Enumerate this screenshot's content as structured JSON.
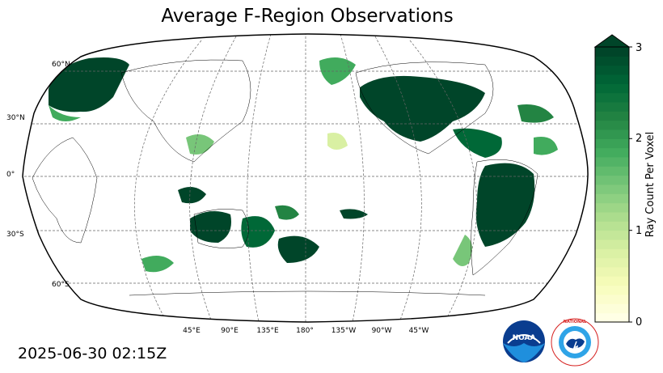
{
  "title": "Average F-Region Observations",
  "timestamp": "2025-06-30 02:15Z",
  "colorbar": {
    "label": "Ray Count Per Voxel",
    "ticks": [
      "0",
      "1",
      "2",
      "3"
    ],
    "min": 0,
    "max": 3,
    "extend": "max",
    "colormap": "YlGn",
    "colors": [
      "#ffffe5",
      "#f7fcb9",
      "#d9f0a3",
      "#addd8e",
      "#78c679",
      "#41ab5d",
      "#238443",
      "#006837",
      "#004529"
    ]
  },
  "map": {
    "projection": "Robinson",
    "central_longitude": 180,
    "lat_labels": [
      "60°N",
      "30°N",
      "0°",
      "30°S",
      "60°S"
    ],
    "lon_labels": [
      "45°E",
      "90°E",
      "135°E",
      "180°",
      "135°W",
      "90°W",
      "45°W"
    ],
    "land_color": "#ffffff",
    "coastline_color": "#000000",
    "gridline_style": "dashed"
  },
  "logos": {
    "noaa_text": "NOAA",
    "nws_text": "NATIONAL WEATHER SERVICE"
  }
}
